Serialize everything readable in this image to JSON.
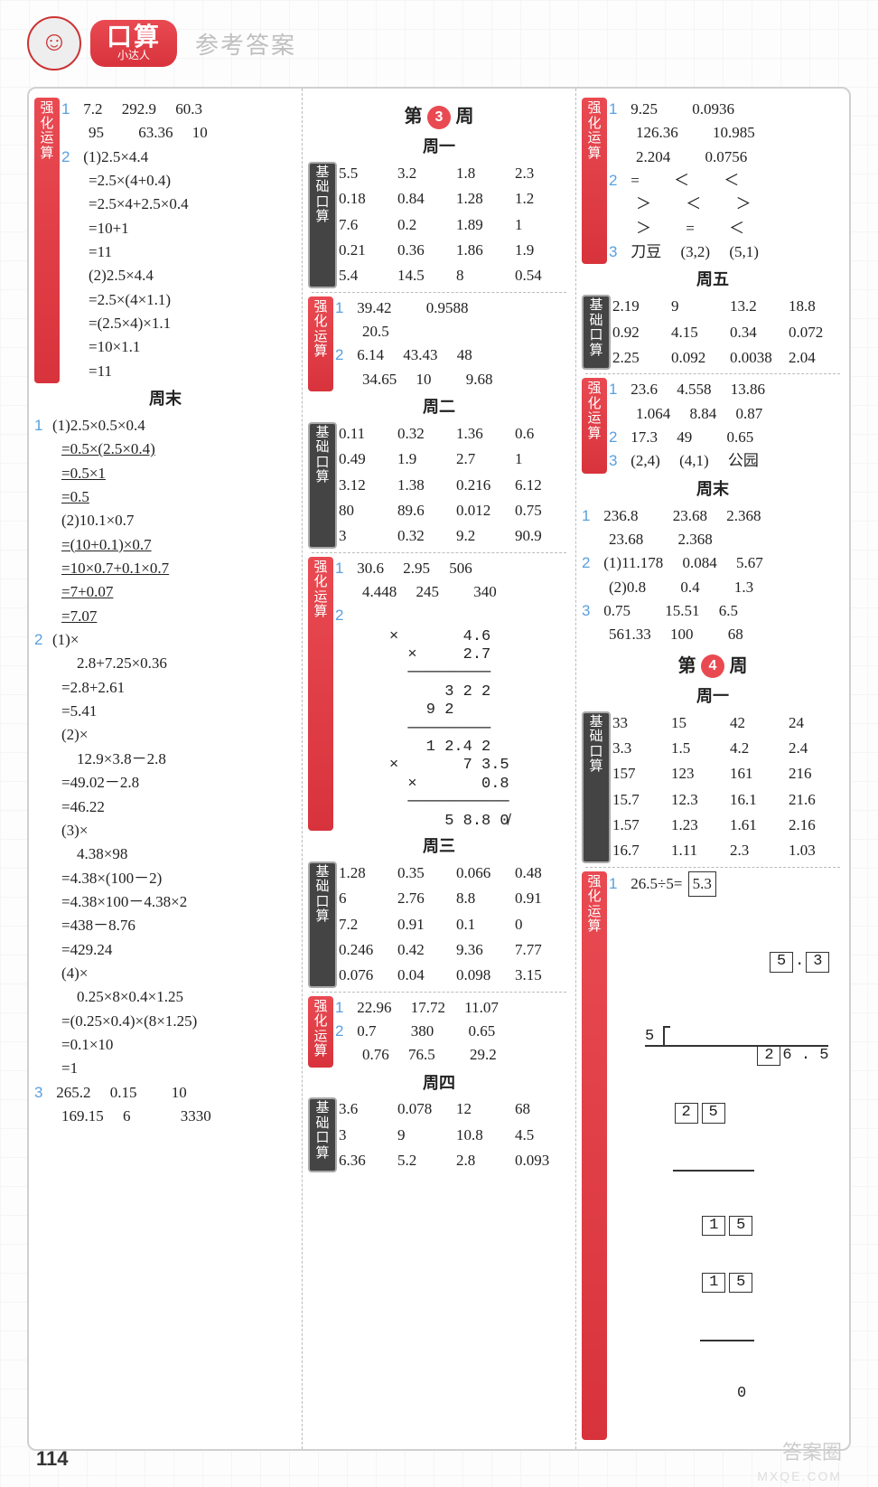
{
  "header": {
    "pill_big": "口算",
    "pill_small": "小达人",
    "subtitle": "参考答案"
  },
  "page_number": "114",
  "watermark1": "答案圈",
  "watermark2": "MXQE.COM",
  "col1": {
    "badge_qh": "强化运算",
    "q1_row": [
      "7.2",
      "292.9",
      "60.3",
      "95",
      "63.36",
      "10"
    ],
    "q2_lines": [
      "(1)2.5×4.4",
      "=2.5×(4+0.4)",
      "=2.5×4+2.5×0.4",
      "=10+1",
      "=11",
      "(2)2.5×4.4",
      "=2.5×(4×1.1)",
      "=(2.5×4)×1.1",
      "=10×1.1",
      "=11"
    ],
    "weekend": "周末",
    "w1_lines": [
      "(1)2.5×0.5×0.4"
    ],
    "w1_lines_u": [
      "=0.5×(2.5×0.4)",
      "=0.5×1",
      "=0.5"
    ],
    "w1b_lines": [
      "(2)10.1×0.7"
    ],
    "w1b_lines_u": [
      "=(10+0.1)×0.7",
      "=10×0.7+0.1×0.7",
      "=7+0.07",
      "=7.07"
    ],
    "w2_lines": [
      "(1)×",
      "　2.8+7.25×0.36",
      "=2.8+2.61",
      "=5.41",
      "(2)×",
      "　12.9×3.8－2.8",
      "=49.02－2.8",
      "=46.22",
      "(3)×",
      "　4.38×98",
      "=4.38×(100－2)",
      "=4.38×100－4.38×2",
      "=438－8.76",
      "=429.24",
      "(4)×",
      "　0.25×8×0.4×1.25",
      "=(0.25×0.4)×(8×1.25)",
      "=0.1×10",
      "=1"
    ],
    "w3_vals": [
      "265.2",
      "0.15",
      "10",
      "169.15",
      "6",
      "3330"
    ]
  },
  "col2": {
    "week3": "第　周",
    "week3_num": "3",
    "d1": "周一",
    "badge_jc": "基础口算",
    "badge_qh": "强化运算",
    "d1_grid": [
      "5.5",
      "3.2",
      "1.8",
      "2.3",
      "0.18",
      "0.84",
      "1.28",
      "1.2",
      "7.6",
      "0.2",
      "1.89",
      "1",
      "0.21",
      "0.36",
      "1.86",
      "1.9",
      "5.4",
      "14.5",
      "8",
      "0.54"
    ],
    "d1_q1": [
      "39.42",
      "0.9588",
      "20.5",
      ""
    ],
    "d1_q2": [
      "6.14",
      "43.43",
      "48",
      "34.65",
      "10",
      "9.68"
    ],
    "d2": "周二",
    "d2_grid": [
      "0.11",
      "0.32",
      "1.36",
      "0.6",
      "0.49",
      "1.9",
      "2.7",
      "1",
      "3.12",
      "1.38",
      "0.216",
      "6.12",
      "80",
      "89.6",
      "0.012",
      "0.75",
      "3",
      "0.32",
      "9.2",
      "90.9"
    ],
    "d2_q1": [
      "30.6",
      "2.95",
      "506",
      "4.448",
      "245",
      "340"
    ],
    "d2_m1": "×       4.6\n  ×     2.7\n  ─────────\n      3 2 2\n    9 2\n  ─────────\n    1 2.4 2",
    "d2_m2": "×       7 3.5\n  ×       0.8\n  ───────────\n      5 8.8 0̸",
    "d3": "周三",
    "d3_grid": [
      "1.28",
      "0.35",
      "0.066",
      "0.48",
      "6",
      "2.76",
      "8.8",
      "0.91",
      "7.2",
      "0.91",
      "0.1",
      "0",
      "0.246",
      "0.42",
      "9.36",
      "7.77",
      "0.076",
      "0.04",
      "0.098",
      "3.15"
    ],
    "d3_q1": [
      "22.96",
      "17.72",
      "11.07"
    ],
    "d3_q2": [
      "0.7",
      "380",
      "0.65",
      "0.76",
      "76.5",
      "29.2"
    ],
    "d4": "周四",
    "d4_grid": [
      "3.6",
      "0.078",
      "12",
      "68",
      "3",
      "9",
      "10.8",
      "4.5",
      "6.36",
      "5.2",
      "2.8",
      "0.093"
    ]
  },
  "col3": {
    "badge_qh": "强化运算",
    "badge_jc": "基础口算",
    "top_q1": [
      "9.25",
      "0.0936",
      "126.36",
      "10.985",
      "2.204",
      "0.0756"
    ],
    "top_q2": [
      "=",
      "＜",
      "＜",
      "＞",
      "＜",
      "＞",
      "＞",
      "=",
      "＜"
    ],
    "top_q3": [
      "刀豆",
      "(3,2)",
      "(5,1)"
    ],
    "d5": "周五",
    "d5_grid": [
      "2.19",
      "9",
      "13.2",
      "18.8",
      "0.92",
      "4.15",
      "0.34",
      "0.072",
      "2.25",
      "0.092",
      "0.0038",
      "2.04"
    ],
    "d5_q1": [
      "23.6",
      "4.558",
      "13.86",
      "1.064",
      "8.84",
      "0.87"
    ],
    "d5_q2": [
      "17.3",
      "49",
      "0.65"
    ],
    "d5_q3": [
      "(2,4)",
      "(4,1)",
      "公园"
    ],
    "weekend": "周末",
    "we_1": [
      "236.8",
      "23.68",
      "2.368",
      "23.68",
      "2.368",
      ""
    ],
    "we_2": [
      "(1)11.178",
      "0.084",
      "5.67",
      "(2)0.8",
      "0.4",
      "1.3"
    ],
    "we_3": [
      "0.75",
      "15.51",
      "6.5",
      "561.33",
      "100",
      "68"
    ],
    "week4": "第　周",
    "week4_num": "4",
    "d1": "周一",
    "w4_grid": [
      "33",
      "15",
      "42",
      "24",
      "3.3",
      "1.5",
      "4.2",
      "2.4",
      "157",
      "123",
      "161",
      "216",
      "15.7",
      "12.3",
      "16.1",
      "21.6",
      "1.57",
      "1.23",
      "1.61",
      "2.16",
      "16.7",
      "1.11",
      "2.3",
      "1.03"
    ],
    "w4_q1_label": "26.5÷5=",
    "w4_q1_ans": "5.3",
    "w4_div_q": "5.3",
    "w4_div": [
      "5",
      ")",
      "2",
      "6",
      ".",
      "5",
      "",
      "",
      "2",
      "5",
      "",
      "",
      "",
      "",
      "",
      "1",
      "5",
      "",
      "",
      "",
      "",
      "1",
      "5",
      "",
      "",
      "",
      "",
      "",
      "0",
      ""
    ]
  }
}
